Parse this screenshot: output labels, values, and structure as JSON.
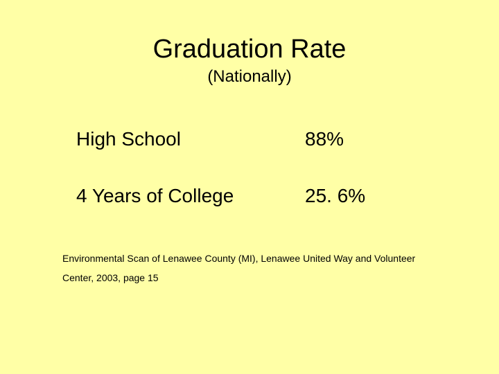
{
  "background_color": "#ffffa6",
  "text_color": "#000000",
  "title": {
    "text": "Graduation Rate",
    "fontsize": 38
  },
  "subtitle": {
    "text": "(Nationally)",
    "fontsize": 24
  },
  "rows": [
    {
      "label": "High School",
      "value": "88%"
    },
    {
      "label": "4 Years of College",
      "value": "25. 6%"
    }
  ],
  "row_fontsize": 28,
  "citation": {
    "text": "Environmental Scan of Lenawee County (MI), Lenawee United Way and Volunteer Center, 2003, page 15",
    "fontsize": 14
  }
}
